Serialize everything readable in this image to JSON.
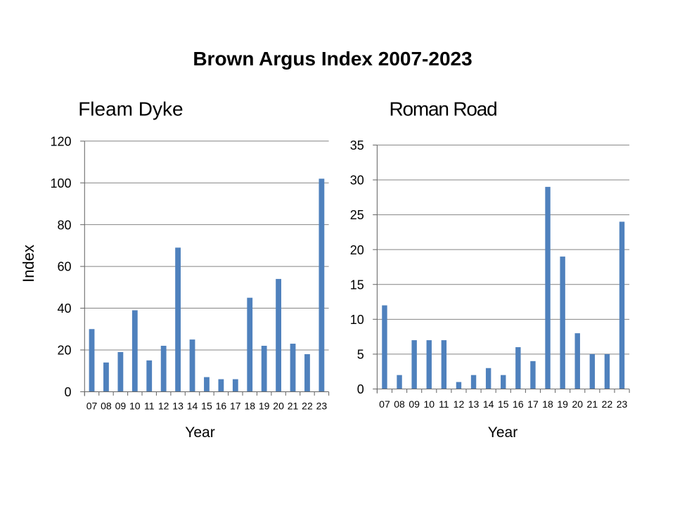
{
  "slide": {
    "title": "Brown Argus Index 2007-2023"
  },
  "colors": {
    "bar": "#4F81BD",
    "gridline": "#848484",
    "axis": "#6D6D6D",
    "text": "#000000",
    "background": "#FFFFFF"
  },
  "chart_data": [
    {
      "type": "bar",
      "title": "Fleam Dyke",
      "xlabel": "Year",
      "ylabel": "Index",
      "categories": [
        "07",
        "08",
        "09",
        "10",
        "11",
        "12",
        "13",
        "14",
        "15",
        "16",
        "17",
        "18",
        "19",
        "20",
        "21",
        "22",
        "23"
      ],
      "values": [
        30,
        14,
        19,
        39,
        15,
        22,
        69,
        25,
        7,
        6,
        6,
        45,
        22,
        54,
        23,
        18,
        102
      ],
      "ylim": [
        0,
        120
      ],
      "ytick_step": 20,
      "yticks": [
        0,
        20,
        40,
        60,
        80,
        100,
        120
      ],
      "grid": "horizontal",
      "legend": "none"
    },
    {
      "type": "bar",
      "title": "Roman Road",
      "xlabel": "Year",
      "ylabel": "",
      "categories": [
        "07",
        "08",
        "09",
        "10",
        "11",
        "12",
        "13",
        "14",
        "15",
        "16",
        "17",
        "18",
        "19",
        "20",
        "21",
        "22",
        "23"
      ],
      "values": [
        12,
        2,
        7,
        7,
        7,
        1,
        2,
        3,
        2,
        6,
        4,
        29,
        19,
        8,
        5,
        5,
        24
      ],
      "ylim": [
        0,
        35
      ],
      "ytick_step": 5,
      "yticks": [
        0,
        5,
        10,
        15,
        20,
        25,
        30,
        35
      ],
      "grid": "horizontal",
      "legend": "none"
    }
  ]
}
